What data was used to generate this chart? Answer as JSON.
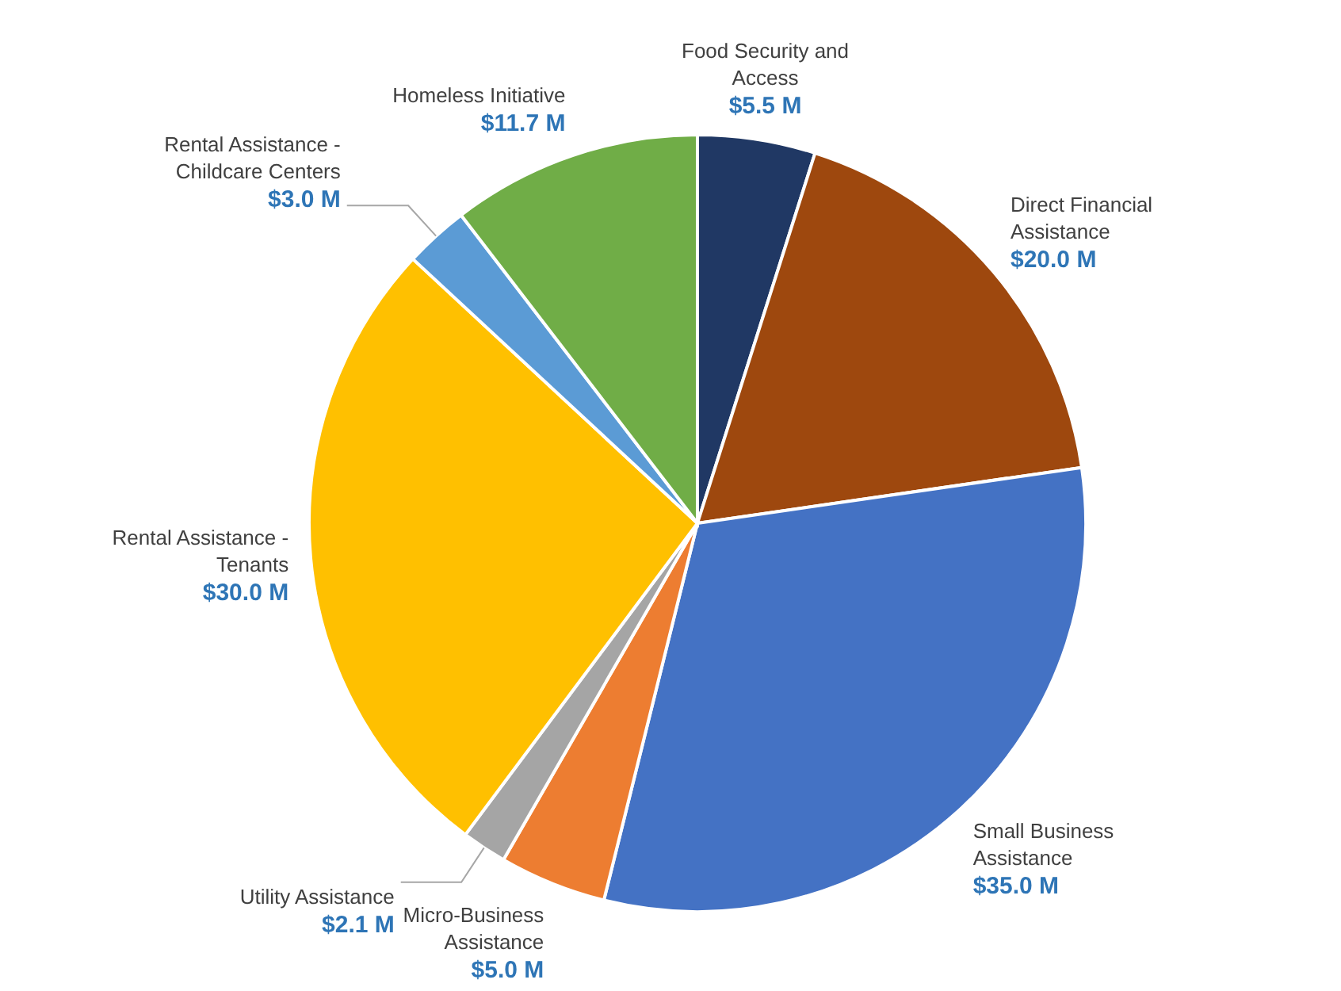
{
  "chart_data": {
    "type": "pie",
    "categories": [
      "Food Security and Access",
      "Direct Financial Assistance",
      "Small Business Assistance",
      "Micro-Business Assistance",
      "Utility Assistance",
      "Rental Assistance - Tenants",
      "Rental Assistance - Childcare Centers",
      "Homeless Initiative"
    ],
    "values": [
      5.5,
      20.0,
      35.0,
      5.0,
      2.1,
      30.0,
      3.0,
      11.7
    ],
    "value_labels": [
      "$5.5 M",
      "$20.0 M",
      "$35.0 M",
      "$5.0 M",
      "$2.1 M",
      "$30.0 M",
      "$3.0 M",
      "$11.7 M"
    ],
    "colors": [
      "#203864",
      "#9e480e",
      "#4472c4",
      "#ed7d31",
      "#a5a5a5",
      "#ffc000",
      "#5b9bd5",
      "#70ad47"
    ]
  }
}
